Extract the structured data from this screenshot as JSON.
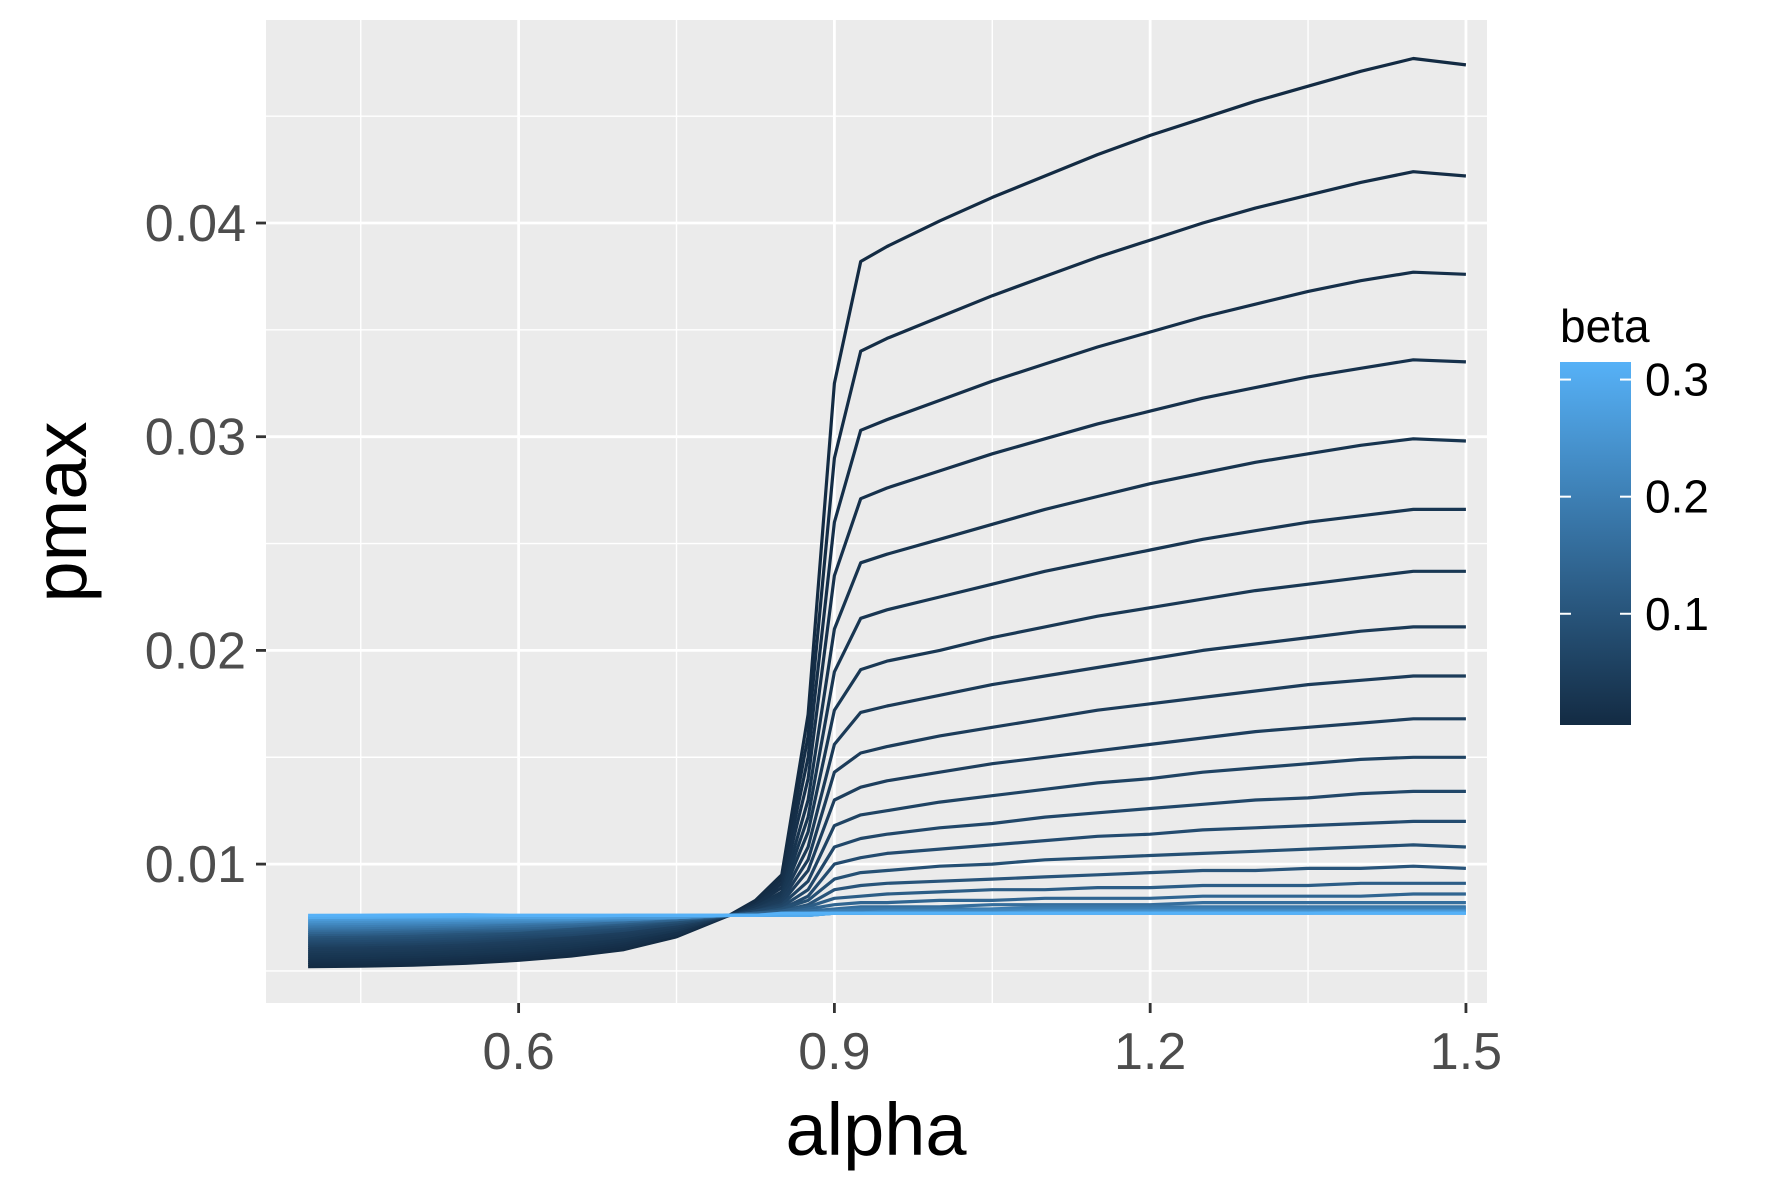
{
  "chart_data": {
    "type": "line",
    "title": "",
    "xlabel": "alpha",
    "ylabel": "pmax",
    "xlim": [
      0.36,
      1.52
    ],
    "ylim": [
      0.0035,
      0.0495
    ],
    "x_ticks": [
      {
        "value": 0.6,
        "label": "0.6"
      },
      {
        "value": 0.9,
        "label": "0.9"
      },
      {
        "value": 1.2,
        "label": "1.2"
      },
      {
        "value": 1.5,
        "label": "1.5"
      }
    ],
    "y_ticks": [
      {
        "value": 0.01,
        "label": "0.01"
      },
      {
        "value": 0.02,
        "label": "0.02"
      },
      {
        "value": 0.03,
        "label": "0.03"
      },
      {
        "value": 0.04,
        "label": "0.04"
      }
    ],
    "grid": true,
    "legend": {
      "title": "beta",
      "type": "colorbar",
      "position": "right",
      "low_color": "#132B43",
      "high_color": "#56B1F7",
      "range": [
        0.005,
        0.315
      ],
      "ticks": [
        {
          "value": 0.1,
          "label": "0.1"
        },
        {
          "value": 0.2,
          "label": "0.2"
        },
        {
          "value": 0.3,
          "label": "0.3"
        }
      ]
    },
    "x": [
      0.4,
      0.45,
      0.5,
      0.55,
      0.6,
      0.65,
      0.7,
      0.75,
      0.8,
      0.825,
      0.85,
      0.875,
      0.9,
      0.925,
      0.95,
      1.0,
      1.05,
      1.1,
      1.15,
      1.2,
      1.25,
      1.3,
      1.35,
      1.4,
      1.45,
      1.5
    ],
    "series": [
      {
        "beta": 0.005,
        "values": [
          0.0052,
          0.00522,
          0.00527,
          0.00536,
          0.0055,
          0.0057,
          0.006,
          0.0066,
          0.0076,
          0.0083,
          0.0095,
          0.017,
          0.0325,
          0.0382,
          0.0389,
          0.0401,
          0.0412,
          0.0422,
          0.0432,
          0.0441,
          0.0449,
          0.0457,
          0.0464,
          0.0471,
          0.0477,
          0.0474
        ]
      },
      {
        "beta": 0.01,
        "values": [
          0.0053,
          0.00532,
          0.00537,
          0.00546,
          0.0056,
          0.0058,
          0.0061,
          0.0067,
          0.0076,
          0.0082,
          0.0093,
          0.016,
          0.029,
          0.034,
          0.0346,
          0.0356,
          0.0366,
          0.0375,
          0.0384,
          0.0392,
          0.04,
          0.0407,
          0.0413,
          0.0419,
          0.0424,
          0.0422
        ]
      },
      {
        "beta": 0.015,
        "values": [
          0.0054,
          0.00542,
          0.00547,
          0.00556,
          0.0057,
          0.0059,
          0.0062,
          0.0067,
          0.0076,
          0.0081,
          0.0091,
          0.015,
          0.026,
          0.0303,
          0.0308,
          0.0317,
          0.0326,
          0.0334,
          0.0342,
          0.0349,
          0.0356,
          0.0362,
          0.0368,
          0.0373,
          0.0377,
          0.0376
        ]
      },
      {
        "beta": 0.02,
        "values": [
          0.0055,
          0.00552,
          0.00557,
          0.00566,
          0.0058,
          0.006,
          0.0063,
          0.0068,
          0.0076,
          0.0081,
          0.0089,
          0.014,
          0.0235,
          0.0271,
          0.0276,
          0.0284,
          0.0292,
          0.0299,
          0.0306,
          0.0312,
          0.0318,
          0.0323,
          0.0328,
          0.0332,
          0.0336,
          0.0335
        ]
      },
      {
        "beta": 0.025,
        "values": [
          0.0056,
          0.00562,
          0.00567,
          0.00576,
          0.0059,
          0.0061,
          0.0064,
          0.0069,
          0.0076,
          0.008,
          0.0087,
          0.013,
          0.021,
          0.0241,
          0.0245,
          0.0252,
          0.0259,
          0.0266,
          0.0272,
          0.0278,
          0.0283,
          0.0288,
          0.0292,
          0.0296,
          0.0299,
          0.0298
        ]
      },
      {
        "beta": 0.03,
        "values": [
          0.0057,
          0.00572,
          0.00577,
          0.00586,
          0.006,
          0.0062,
          0.0065,
          0.0069,
          0.0076,
          0.008,
          0.0086,
          0.0122,
          0.019,
          0.0215,
          0.0219,
          0.0225,
          0.0231,
          0.0237,
          0.0242,
          0.0247,
          0.0252,
          0.0256,
          0.026,
          0.0263,
          0.0266,
          0.0266
        ]
      },
      {
        "beta": 0.035,
        "values": [
          0.0058,
          0.00582,
          0.00587,
          0.00596,
          0.0061,
          0.0063,
          0.0066,
          0.007,
          0.0076,
          0.0079,
          0.0085,
          0.0115,
          0.0172,
          0.0191,
          0.0195,
          0.02,
          0.0206,
          0.0211,
          0.0216,
          0.022,
          0.0224,
          0.0228,
          0.0231,
          0.0234,
          0.0237,
          0.0237
        ]
      },
      {
        "beta": 0.04,
        "values": [
          0.0059,
          0.00592,
          0.00597,
          0.00606,
          0.0062,
          0.0064,
          0.0066,
          0.007,
          0.0076,
          0.0079,
          0.0084,
          0.0108,
          0.0156,
          0.0171,
          0.0174,
          0.0179,
          0.0184,
          0.0188,
          0.0192,
          0.0196,
          0.02,
          0.0203,
          0.0206,
          0.0209,
          0.0211,
          0.0211
        ]
      },
      {
        "beta": 0.045,
        "values": [
          0.006,
          0.00602,
          0.00607,
          0.00616,
          0.0063,
          0.0065,
          0.0067,
          0.0071,
          0.0076,
          0.0079,
          0.0083,
          0.0102,
          0.0143,
          0.0152,
          0.0155,
          0.016,
          0.0164,
          0.0168,
          0.0172,
          0.0175,
          0.0178,
          0.0181,
          0.0184,
          0.0186,
          0.0188,
          0.0188
        ]
      },
      {
        "beta": 0.05,
        "values": [
          0.0061,
          0.00612,
          0.00617,
          0.00626,
          0.0064,
          0.0066,
          0.0068,
          0.0071,
          0.0076,
          0.0078,
          0.0082,
          0.0097,
          0.013,
          0.0136,
          0.0139,
          0.0143,
          0.0147,
          0.015,
          0.0153,
          0.0156,
          0.0159,
          0.0162,
          0.0164,
          0.0166,
          0.0168,
          0.0168
        ]
      },
      {
        "beta": 0.06,
        "values": [
          0.0062,
          0.00622,
          0.00627,
          0.00636,
          0.0065,
          0.0067,
          0.0069,
          0.0072,
          0.0076,
          0.0078,
          0.0081,
          0.0092,
          0.0118,
          0.0123,
          0.0125,
          0.0129,
          0.0132,
          0.0135,
          0.0138,
          0.014,
          0.0143,
          0.0145,
          0.0147,
          0.0149,
          0.015,
          0.015
        ]
      },
      {
        "beta": 0.07,
        "values": [
          0.0063,
          0.00632,
          0.00637,
          0.00646,
          0.0066,
          0.0067,
          0.0069,
          0.0072,
          0.0076,
          0.0078,
          0.008,
          0.0088,
          0.0108,
          0.0112,
          0.0114,
          0.0117,
          0.0119,
          0.0122,
          0.0124,
          0.0126,
          0.0128,
          0.013,
          0.0131,
          0.0133,
          0.0134,
          0.0134
        ]
      },
      {
        "beta": 0.08,
        "values": [
          0.0064,
          0.00642,
          0.00647,
          0.00656,
          0.0067,
          0.0068,
          0.007,
          0.0073,
          0.0076,
          0.0077,
          0.0079,
          0.0085,
          0.01,
          0.0103,
          0.0105,
          0.0107,
          0.0109,
          0.0111,
          0.0113,
          0.0114,
          0.0116,
          0.0117,
          0.0118,
          0.0119,
          0.012,
          0.012
        ]
      },
      {
        "beta": 0.09,
        "values": [
          0.0065,
          0.00652,
          0.00657,
          0.00666,
          0.0068,
          0.0069,
          0.0071,
          0.0073,
          0.0076,
          0.0077,
          0.0079,
          0.0083,
          0.0093,
          0.0096,
          0.0097,
          0.0099,
          0.01,
          0.0102,
          0.0103,
          0.0104,
          0.0105,
          0.0106,
          0.0107,
          0.0108,
          0.0109,
          0.0108
        ]
      },
      {
        "beta": 0.1,
        "values": [
          0.0066,
          0.00662,
          0.00667,
          0.00676,
          0.0069,
          0.007,
          0.0071,
          0.0074,
          0.0076,
          0.0077,
          0.0078,
          0.0081,
          0.0088,
          0.009,
          0.0091,
          0.0092,
          0.0093,
          0.0094,
          0.0095,
          0.0096,
          0.0097,
          0.0097,
          0.0098,
          0.0098,
          0.0099,
          0.0098
        ]
      },
      {
        "beta": 0.12,
        "values": [
          0.0067,
          0.00672,
          0.00677,
          0.00686,
          0.0069,
          0.0071,
          0.0072,
          0.0074,
          0.0076,
          0.0077,
          0.0078,
          0.008,
          0.0084,
          0.0085,
          0.0086,
          0.0087,
          0.0088,
          0.0088,
          0.0089,
          0.0089,
          0.009,
          0.009,
          0.009,
          0.0091,
          0.0091,
          0.0091
        ]
      },
      {
        "beta": 0.14,
        "values": [
          0.0068,
          0.00682,
          0.00687,
          0.00695,
          0.007,
          0.0071,
          0.0073,
          0.0074,
          0.0076,
          0.0077,
          0.0077,
          0.0079,
          0.0081,
          0.0082,
          0.0082,
          0.0083,
          0.0083,
          0.0084,
          0.0084,
          0.0084,
          0.0085,
          0.0085,
          0.0085,
          0.0085,
          0.0086,
          0.0086
        ]
      },
      {
        "beta": 0.16,
        "values": [
          0.0069,
          0.00692,
          0.00697,
          0.00703,
          0.0071,
          0.0072,
          0.0073,
          0.0075,
          0.0076,
          0.0076,
          0.0077,
          0.0078,
          0.0079,
          0.008,
          0.008,
          0.008,
          0.0081,
          0.0081,
          0.0081,
          0.0081,
          0.0082,
          0.0082,
          0.0082,
          0.0082,
          0.0082,
          0.0082
        ]
      },
      {
        "beta": 0.18,
        "values": [
          0.007,
          0.00702,
          0.00706,
          0.00712,
          0.0072,
          0.0073,
          0.0074,
          0.0075,
          0.0076,
          0.0076,
          0.0077,
          0.0077,
          0.0078,
          0.0079,
          0.0079,
          0.0079,
          0.0079,
          0.008,
          0.008,
          0.008,
          0.008,
          0.008,
          0.008,
          0.008,
          0.008,
          0.008
        ]
      },
      {
        "beta": 0.2,
        "values": [
          0.0071,
          0.00712,
          0.00716,
          0.0072,
          0.0073,
          0.0073,
          0.0074,
          0.0075,
          0.0076,
          0.0076,
          0.0076,
          0.0077,
          0.0078,
          0.0078,
          0.0078,
          0.0078,
          0.0079,
          0.0079,
          0.0079,
          0.0079,
          0.0079,
          0.0079,
          0.0079,
          0.0079,
          0.0079,
          0.0079
        ]
      },
      {
        "beta": 0.22,
        "values": [
          0.0072,
          0.00722,
          0.00725,
          0.00729,
          0.0073,
          0.0074,
          0.0074,
          0.0075,
          0.0076,
          0.0076,
          0.0076,
          0.0077,
          0.0077,
          0.0077,
          0.0078,
          0.0078,
          0.0078,
          0.0078,
          0.0078,
          0.0078,
          0.0078,
          0.0078,
          0.0078,
          0.0078,
          0.0078,
          0.0078
        ]
      },
      {
        "beta": 0.24,
        "values": [
          0.0073,
          0.00732,
          0.00734,
          0.00737,
          0.0074,
          0.0074,
          0.0075,
          0.0075,
          0.0076,
          0.0076,
          0.0076,
          0.0076,
          0.0077,
          0.0077,
          0.0077,
          0.0077,
          0.0077,
          0.0078,
          0.0078,
          0.0078,
          0.0078,
          0.0078,
          0.0078,
          0.0078,
          0.0078,
          0.0078
        ]
      },
      {
        "beta": 0.26,
        "values": [
          0.0074,
          0.00741,
          0.00743,
          0.00745,
          0.0075,
          0.0075,
          0.0075,
          0.0075,
          0.0076,
          0.0076,
          0.0076,
          0.0076,
          0.0077,
          0.0077,
          0.0077,
          0.0077,
          0.0077,
          0.0077,
          0.0077,
          0.0077,
          0.0077,
          0.0077,
          0.0077,
          0.0078,
          0.0078,
          0.0078
        ]
      },
      {
        "beta": 0.28,
        "values": [
          0.0075,
          0.0075,
          0.00751,
          0.00752,
          0.0075,
          0.0075,
          0.0076,
          0.0076,
          0.0076,
          0.0076,
          0.0076,
          0.0076,
          0.0077,
          0.0077,
          0.0077,
          0.0077,
          0.0077,
          0.0077,
          0.0077,
          0.0077,
          0.0077,
          0.0077,
          0.0077,
          0.0077,
          0.0077,
          0.0077
        ]
      },
      {
        "beta": 0.3,
        "values": [
          0.0075,
          0.00752,
          0.00754,
          0.00756,
          0.0076,
          0.0076,
          0.0076,
          0.0076,
          0.0076,
          0.0076,
          0.0076,
          0.0076,
          0.0077,
          0.0077,
          0.0077,
          0.0077,
          0.0077,
          0.0077,
          0.0077,
          0.0077,
          0.0077,
          0.0077,
          0.0077,
          0.0077,
          0.0077,
          0.0077
        ]
      },
      {
        "beta": 0.315,
        "values": [
          0.0076,
          0.00761,
          0.00762,
          0.00763,
          0.0076,
          0.0076,
          0.0076,
          0.0076,
          0.0076,
          0.0076,
          0.0077,
          0.0077,
          0.0077,
          0.0077,
          0.0077,
          0.0077,
          0.0077,
          0.0077,
          0.0077,
          0.0077,
          0.0077,
          0.0077,
          0.0077,
          0.0077,
          0.0077,
          0.0077
        ]
      }
    ]
  }
}
